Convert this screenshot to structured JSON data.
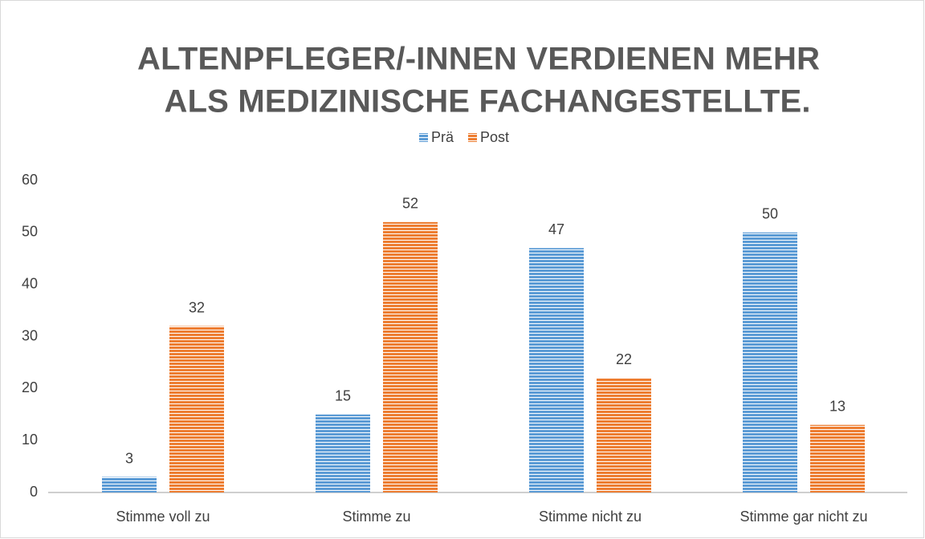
{
  "chart_data": {
    "type": "bar",
    "title": [
      "ALTENPFLEGER/-INNEN VERDIENEN MEHR",
      "ALS MEDIZINISCHE FACHANGESTELLTE."
    ],
    "categories": [
      "Stimme voll zu",
      "Stimme zu",
      "Stimme nicht zu",
      "Stimme gar nicht zu"
    ],
    "series": [
      {
        "name": "Prä",
        "color": "#5b9bd5",
        "values": [
          3,
          15,
          47,
          50
        ]
      },
      {
        "name": "Post",
        "color": "#ed7d31",
        "values": [
          32,
          52,
          22,
          13
        ]
      }
    ],
    "ylim": [
      0,
      60
    ],
    "yticks": [
      0,
      10,
      20,
      30,
      40,
      50,
      60
    ],
    "grid": false,
    "legend": "top"
  }
}
